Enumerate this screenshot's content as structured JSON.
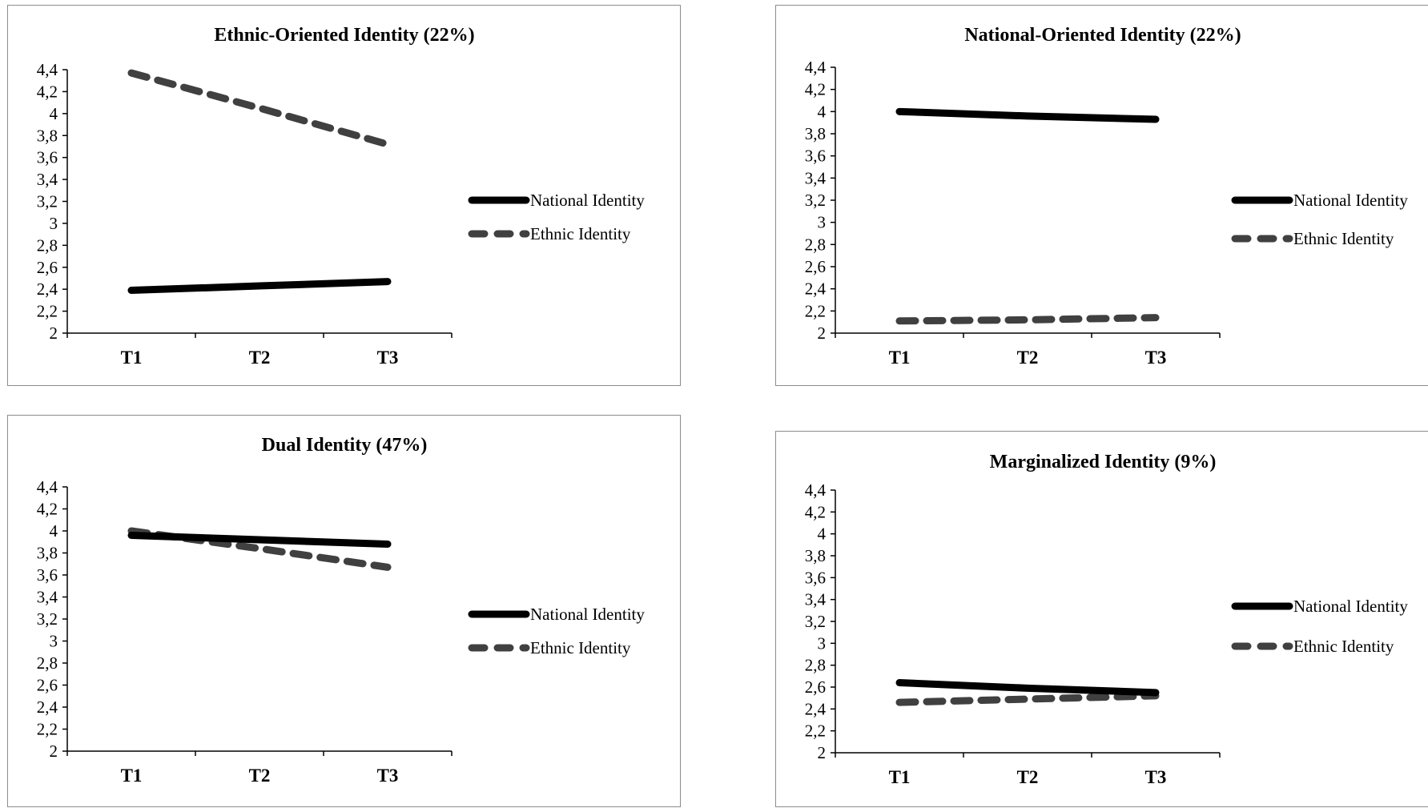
{
  "chart_data": [
    {
      "type": "line",
      "title": "Ethnic-Oriented Identity (22%)",
      "categories": [
        "T1",
        "T2",
        "T3"
      ],
      "yticks": [
        "2",
        "2,2",
        "2,4",
        "2,6",
        "2,8",
        "3",
        "3,2",
        "3,4",
        "3,6",
        "3,8",
        "4",
        "4,2",
        "4,4"
      ],
      "ylim": [
        2,
        4.4
      ],
      "grid": false,
      "legend": "right",
      "series": [
        {
          "name": "National Identity",
          "values": [
            2.39,
            2.43,
            2.47
          ],
          "style": "solid",
          "color": "#000000"
        },
        {
          "name": "Ethnic Identity",
          "values": [
            4.37,
            4.05,
            3.72
          ],
          "style": "dashed",
          "color": "#404040"
        }
      ]
    },
    {
      "type": "line",
      "title": "National-Oriented Identity (22%)",
      "categories": [
        "T1",
        "T2",
        "T3"
      ],
      "yticks": [
        "2",
        "2,2",
        "2,4",
        "2,6",
        "2,8",
        "3",
        "3,2",
        "3,4",
        "3,6",
        "3,8",
        "4",
        "4,2",
        "4,4"
      ],
      "ylim": [
        2,
        4.4
      ],
      "grid": false,
      "legend": "right",
      "series": [
        {
          "name": "National Identity",
          "values": [
            4.0,
            3.96,
            3.93
          ],
          "style": "solid",
          "color": "#000000"
        },
        {
          "name": "Ethnic Identity",
          "values": [
            2.11,
            2.12,
            2.14
          ],
          "style": "dashed",
          "color": "#404040"
        }
      ]
    },
    {
      "type": "line",
      "title": "Dual Identity (47%)",
      "categories": [
        "T1",
        "T2",
        "T3"
      ],
      "yticks": [
        "2",
        "2,2",
        "2,4",
        "2,6",
        "2,8",
        "3",
        "3,2",
        "3,4",
        "3,6",
        "3,8",
        "4",
        "4,2",
        "4,4"
      ],
      "ylim": [
        2,
        4.4
      ],
      "grid": false,
      "legend": "right",
      "series": [
        {
          "name": "National Identity",
          "values": [
            3.96,
            3.92,
            3.88
          ],
          "style": "solid",
          "color": "#000000"
        },
        {
          "name": "Ethnic Identity",
          "values": [
            4.0,
            3.84,
            3.67
          ],
          "style": "dashed",
          "color": "#404040"
        }
      ]
    },
    {
      "type": "line",
      "title": "Marginalized Identity (9%)",
      "categories": [
        "T1",
        "T2",
        "T3"
      ],
      "yticks": [
        "2",
        "2,2",
        "2,4",
        "2,6",
        "2,8",
        "3",
        "3,2",
        "3,4",
        "3,6",
        "3,8",
        "4",
        "4,2",
        "4,4"
      ],
      "ylim": [
        2,
        4.4
      ],
      "grid": false,
      "legend": "right",
      "series": [
        {
          "name": "National Identity",
          "values": [
            2.64,
            2.59,
            2.55
          ],
          "style": "solid",
          "color": "#000000"
        },
        {
          "name": "Ethnic Identity",
          "values": [
            2.46,
            2.49,
            2.52
          ],
          "style": "dashed",
          "color": "#404040"
        }
      ]
    }
  ]
}
